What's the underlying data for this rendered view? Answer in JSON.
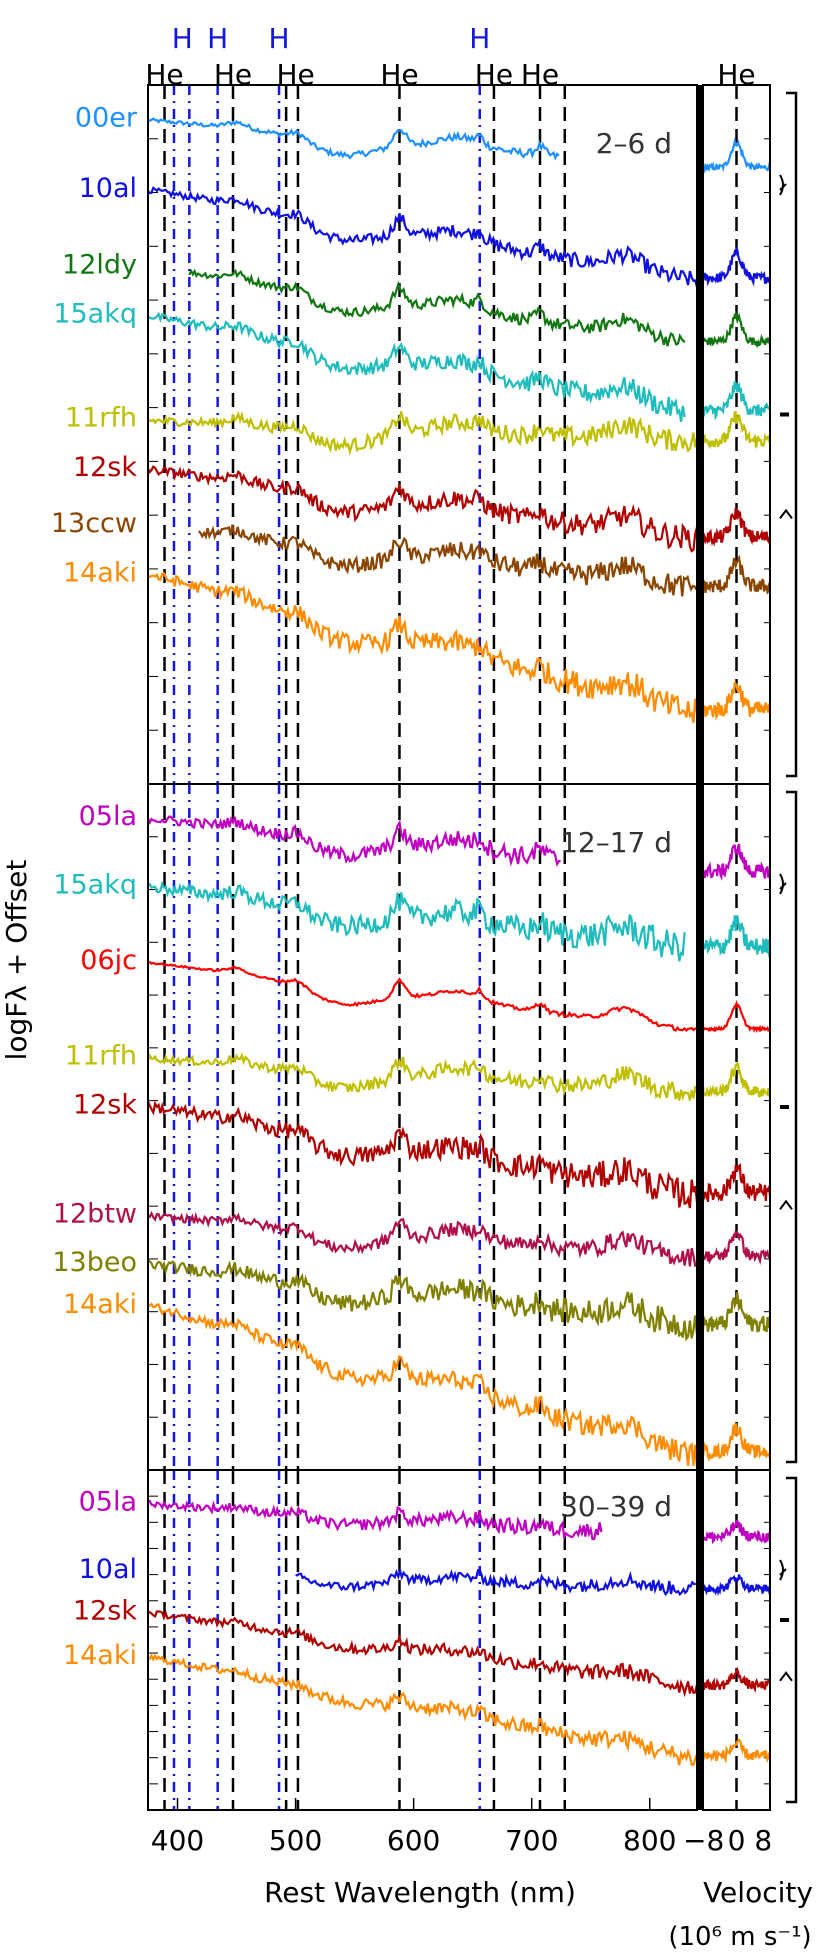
{
  "chart_data": {
    "type": "line",
    "ylabel": "logFλ + Offset",
    "xlabel": "Rest Wavelength (nm)",
    "velocity_label_line1": "Velocity",
    "velocity_label_line2": "(10⁶ m s⁻¹)",
    "xlim": [
      375,
      840
    ],
    "xticks": [
      400,
      500,
      600,
      700,
      800
    ],
    "velocity_xlim": [
      -10,
      10
    ],
    "velocity_ticks": [
      "−8",
      "0",
      "8"
    ],
    "line_markers": {
      "He": [
        389,
        447,
        492,
        502,
        588,
        668,
        707,
        728
      ],
      "H": [
        397,
        410,
        434,
        486,
        656
      ],
      "top_labels": [
        {
          "text": "He",
          "x": 389,
          "row": "bottom",
          "color": "#000000"
        },
        {
          "text": "He",
          "x": 447,
          "row": "bottom",
          "color": "#000000"
        },
        {
          "text": "He",
          "x": 500,
          "row": "bottom",
          "color": "#000000"
        },
        {
          "text": "He",
          "x": 588,
          "row": "bottom",
          "color": "#000000"
        },
        {
          "text": "He",
          "x": 668,
          "row": "bottom",
          "color": "#000000"
        },
        {
          "text": "He",
          "x": 707,
          "row": "bottom",
          "color": "#000000"
        },
        {
          "text": "H",
          "x": 404,
          "row": "top",
          "color": "#1515e0"
        },
        {
          "text": "H",
          "x": 434,
          "row": "top",
          "color": "#1515e0"
        },
        {
          "text": "H",
          "x": 486,
          "row": "top",
          "color": "#1515e0"
        },
        {
          "text": "H",
          "x": 656,
          "row": "top",
          "color": "#1515e0"
        },
        {
          "text": "He",
          "x": 0,
          "row": "velocity",
          "color": "#000000"
        }
      ]
    },
    "panels": [
      {
        "epoch": "2–6 d",
        "series": [
          {
            "name": "00er",
            "color": "#1e90ff",
            "range": [
              375,
              724
            ],
            "level": 0.95,
            "slope": -0.07,
            "noise": 0.004
          },
          {
            "name": "10al",
            "color": "#1010e0",
            "range": [
              375,
              840
            ],
            "level": 0.85,
            "slope": -0.13,
            "noise": 0.007
          },
          {
            "name": "12ldy",
            "color": "#117711",
            "range": [
              410,
              830
            ],
            "level": 0.74,
            "slope": -0.11,
            "noise": 0.006
          },
          {
            "name": "15akq",
            "color": "#1ebcbc",
            "range": [
              375,
              830
            ],
            "level": 0.67,
            "slope": -0.14,
            "noise": 0.009
          },
          {
            "name": "11rfh",
            "color": "#bfbf00",
            "range": [
              375,
              840
            ],
            "level": 0.52,
            "slope": -0.03,
            "noise": 0.009
          },
          {
            "name": "12sk",
            "color": "#b00000",
            "range": [
              375,
              840
            ],
            "level": 0.45,
            "slope": -0.1,
            "noise": 0.01
          },
          {
            "name": "13ccw",
            "color": "#8b4500",
            "range": [
              418,
              840
            ],
            "level": 0.37,
            "slope": -0.09,
            "noise": 0.01
          },
          {
            "name": "14aki",
            "color": "#ff8c00",
            "range": [
              375,
              840
            ],
            "level": 0.3,
            "slope": -0.2,
            "noise": 0.012
          }
        ]
      },
      {
        "epoch": "12–17 d",
        "series": [
          {
            "name": "05la",
            "color": "#c000c0",
            "range": [
              375,
              725
            ],
            "level": 0.95,
            "slope": -0.08,
            "noise": 0.01
          },
          {
            "name": "15akq",
            "color": "#1ebcbc",
            "range": [
              375,
              830
            ],
            "level": 0.85,
            "slope": -0.09,
            "noise": 0.013
          },
          {
            "name": "06jc",
            "color": "#ff0000",
            "range": [
              375,
              840
            ],
            "level": 0.74,
            "slope": -0.1,
            "noise": 0.002
          },
          {
            "name": "11rfh",
            "color": "#bfbf00",
            "range": [
              375,
              840
            ],
            "level": 0.6,
            "slope": -0.05,
            "noise": 0.008
          },
          {
            "name": "12sk",
            "color": "#b00000",
            "range": [
              375,
              840
            ],
            "level": 0.53,
            "slope": -0.13,
            "noise": 0.013
          },
          {
            "name": "12btw",
            "color": "#b0104a",
            "range": [
              375,
              840
            ],
            "level": 0.37,
            "slope": -0.06,
            "noise": 0.008
          },
          {
            "name": "13beo",
            "color": "#808000",
            "range": [
              375,
              840
            ],
            "level": 0.3,
            "slope": -0.09,
            "noise": 0.012
          },
          {
            "name": "14aki",
            "color": "#ff8c00",
            "range": [
              375,
              840
            ],
            "level": 0.24,
            "slope": -0.22,
            "noise": 0.01
          }
        ]
      },
      {
        "epoch": "30–39 d",
        "series": [
          {
            "name": "05la",
            "color": "#c000c0",
            "range": [
              375,
              760
            ],
            "level": 0.9,
            "slope": -0.1,
            "noise": 0.016
          },
          {
            "name": "10al",
            "color": "#1010e0",
            "range": [
              500,
              840
            ],
            "level": 0.7,
            "slope": -0.05,
            "noise": 0.012
          },
          {
            "name": "12sk",
            "color": "#b00000",
            "range": [
              375,
              840
            ],
            "level": 0.58,
            "slope": -0.22,
            "noise": 0.014
          },
          {
            "name": "14aki",
            "color": "#ff8c00",
            "range": [
              375,
              840
            ],
            "level": 0.45,
            "slope": -0.3,
            "noise": 0.016
          }
        ]
      }
    ]
  }
}
